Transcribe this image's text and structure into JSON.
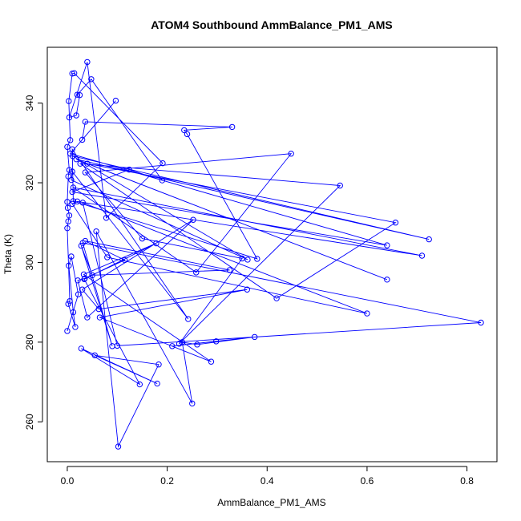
{
  "chart_data": {
    "type": "scatter",
    "title": "ATOM4 Southbound AmmBalance_PM1_AMS",
    "xlabel": "AmmBalance_PM1_AMS",
    "ylabel": "Theta (K)",
    "xlim": [
      -0.04,
      0.86
    ],
    "ylim": [
      250,
      354
    ],
    "xticks": [
      "0.0",
      "0.2",
      "0.4",
      "0.6",
      "0.8"
    ],
    "xtick_values": [
      0,
      0.2,
      0.4,
      0.6,
      0.8
    ],
    "yticks": [
      "260",
      "280",
      "300",
      "320",
      "340"
    ],
    "ytick_values": [
      260,
      280,
      300,
      320,
      340
    ],
    "connected": true,
    "color": "#0000ff",
    "points": [
      [
        0.0,
        282.8
      ],
      [
        0.022,
        292.0
      ],
      [
        0.008,
        301.5
      ],
      [
        0.003,
        299.2
      ],
      [
        0.012,
        287.5
      ],
      [
        0.016,
        283.8
      ],
      [
        0.002,
        289.6
      ],
      [
        0.005,
        290.3
      ],
      [
        0.0,
        308.6
      ],
      [
        0.002,
        310.3
      ],
      [
        0.004,
        311.8
      ],
      [
        0.001,
        313.7
      ],
      [
        0.0,
        315.2
      ],
      [
        0.002,
        321.6
      ],
      [
        0.004,
        323.2
      ],
      [
        0.0,
        329.0
      ],
      [
        0.006,
        330.7
      ],
      [
        0.003,
        340.5
      ],
      [
        0.01,
        347.4
      ],
      [
        0.014,
        347.5
      ],
      [
        0.191,
        324.9
      ],
      [
        0.078,
        311.2
      ],
      [
        0.04,
        350.3
      ],
      [
        0.004,
        336.4
      ],
      [
        0.018,
        336.9
      ],
      [
        0.025,
        342.0
      ],
      [
        0.02,
        342.1
      ],
      [
        0.048,
        346.0
      ],
      [
        0.19,
        320.6
      ],
      [
        0.124,
        323.3
      ],
      [
        0.01,
        317.7
      ],
      [
        0.64,
        304.3
      ],
      [
        0.006,
        327.3
      ],
      [
        0.097,
        340.6
      ],
      [
        0.03,
        330.8
      ],
      [
        0.036,
        335.3
      ],
      [
        0.33,
        334.0
      ],
      [
        0.234,
        333.2
      ],
      [
        0.24,
        332.2
      ],
      [
        0.38,
        300.9
      ],
      [
        0.012,
        315.4
      ],
      [
        0.01,
        328.4
      ],
      [
        0.242,
        285.8
      ],
      [
        0.01,
        322.8
      ],
      [
        0.008,
        320.7
      ],
      [
        0.361,
        300.7
      ],
      [
        0.011,
        326.7
      ],
      [
        0.724,
        305.8
      ],
      [
        0.018,
        325.9
      ],
      [
        0.64,
        295.7
      ],
      [
        0.04,
        324.8
      ],
      [
        0.657,
        310.0
      ],
      [
        0.419,
        291.0
      ],
      [
        0.026,
        324.8
      ],
      [
        0.546,
        319.3
      ],
      [
        0.224,
        279.6
      ],
      [
        0.35,
        301.0
      ],
      [
        0.15,
        306.0
      ],
      [
        0.036,
        322.6
      ],
      [
        0.448,
        327.3
      ],
      [
        0.258,
        297.5
      ],
      [
        0.012,
        318.8
      ],
      [
        0.71,
        301.7
      ],
      [
        0.02,
        315.3
      ],
      [
        0.01,
        314.7
      ],
      [
        0.08,
        301.3
      ],
      [
        0.6,
        287.2
      ],
      [
        0.031,
        315.0
      ],
      [
        0.1,
        279.1
      ],
      [
        0.828,
        284.9
      ],
      [
        0.031,
        304.9
      ],
      [
        0.09,
        279.0
      ],
      [
        0.028,
        304.2
      ],
      [
        0.05,
        296.8
      ],
      [
        0.325,
        298.1
      ],
      [
        0.036,
        305.4
      ],
      [
        0.115,
        300.6
      ],
      [
        0.035,
        296.0
      ],
      [
        0.021,
        295.5
      ],
      [
        0.04,
        286.2
      ],
      [
        0.252,
        310.7
      ],
      [
        0.03,
        293.2
      ],
      [
        0.063,
        288.3
      ],
      [
        0.36,
        293.2
      ],
      [
        0.065,
        286.2
      ],
      [
        0.288,
        275.1
      ],
      [
        0.033,
        297.0
      ],
      [
        0.178,
        304.8
      ],
      [
        0.034,
        295.8
      ],
      [
        0.145,
        269.4
      ],
      [
        0.028,
        278.4
      ],
      [
        0.18,
        269.6
      ],
      [
        0.055,
        276.7
      ],
      [
        0.183,
        274.4
      ],
      [
        0.102,
        253.8
      ],
      [
        0.058,
        307.8
      ],
      [
        0.25,
        264.6
      ],
      [
        0.23,
        280.0
      ],
      [
        0.26,
        279.4
      ],
      [
        0.375,
        281.3
      ],
      [
        0.21,
        279.0
      ],
      [
        0.298,
        280.2
      ]
    ]
  }
}
